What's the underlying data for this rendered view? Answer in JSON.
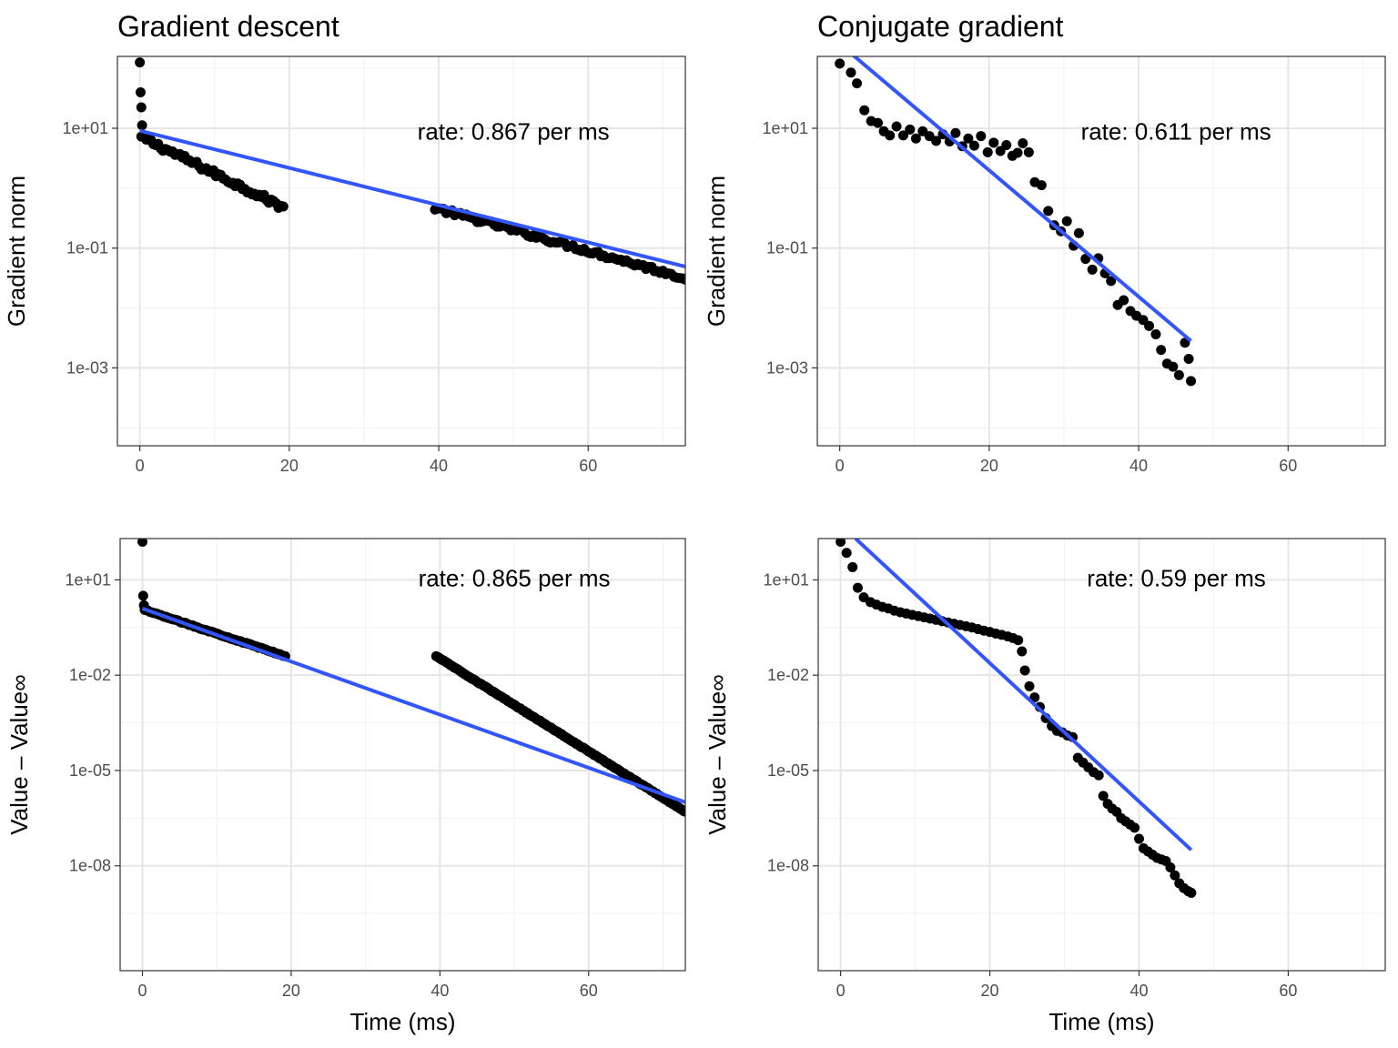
{
  "chart_data": [
    {
      "type": "scatter",
      "title": "Gradient descent",
      "ylabel": "Gradient norm",
      "xlabel": "",
      "xlim": [
        -3,
        73
      ],
      "ylim_log10": [
        -4.3,
        2.2
      ],
      "y_scale": "log10",
      "xticks": [
        0,
        20,
        40,
        60
      ],
      "xtick_labels": [
        "0",
        "20",
        "40",
        "60"
      ],
      "yticks_log10": [
        1,
        -1,
        -3
      ],
      "ytick_labels": [
        "1e+01",
        "1e-01",
        "1e-03"
      ],
      "annotation": {
        "text": "rate: 0.867 per ms",
        "x": 50,
        "y_log10": 0.95
      },
      "grid": true,
      "fit_line": {
        "color": "#3355FF",
        "x0": 0,
        "y0_log10": 0.96,
        "x1": 73,
        "y1_log10": -1.31
      },
      "segments": [
        {
          "x_start": 0.2,
          "x_end": 19.2,
          "n": 60,
          "y_start_log10": 0.85,
          "y_end_log10": -0.32,
          "noise": 0.05
        },
        {
          "x_start": 39.5,
          "x_end": 73,
          "n": 90,
          "y_start_log10": -0.33,
          "y_end_log10": -1.5,
          "noise": 0.04
        }
      ],
      "extra_points": [
        {
          "x": 0,
          "y_log10": 2.1
        },
        {
          "x": 0.1,
          "y_log10": 1.6
        },
        {
          "x": 0.2,
          "y_log10": 1.35
        },
        {
          "x": 0.3,
          "y_log10": 1.05
        }
      ]
    },
    {
      "type": "scatter",
      "title": "Conjugate gradient",
      "ylabel": "Gradient norm",
      "xlabel": "",
      "xlim": [
        -3,
        73
      ],
      "ylim_log10": [
        -4.3,
        2.2
      ],
      "y_scale": "log10",
      "xticks": [
        0,
        20,
        40,
        60
      ],
      "xtick_labels": [
        "0",
        "20",
        "40",
        "60"
      ],
      "yticks_log10": [
        1,
        -1,
        -3
      ],
      "ytick_labels": [
        "1e+01",
        "1e-01",
        "1e-03"
      ],
      "annotation": {
        "text": "rate: 0.611 per ms",
        "x": 45,
        "y_log10": 0.95
      },
      "grid": true,
      "fit_line": {
        "color": "#3355FF",
        "x0": 1.5,
        "y0_log10": 2.25,
        "x1": 47,
        "y1_log10": -2.55
      },
      "points": [
        [
          0,
          2.08
        ],
        [
          1.5,
          1.93
        ],
        [
          2.3,
          1.75
        ],
        [
          3.3,
          1.3
        ],
        [
          4.2,
          1.12
        ],
        [
          5.1,
          1.09
        ],
        [
          5.9,
          0.95
        ],
        [
          6.7,
          0.88
        ],
        [
          7.6,
          1.03
        ],
        [
          8.5,
          0.88
        ],
        [
          9.4,
          0.98
        ],
        [
          10.2,
          0.83
        ],
        [
          11.1,
          0.95
        ],
        [
          12,
          0.87
        ],
        [
          12.9,
          0.79
        ],
        [
          13.8,
          0.9
        ],
        [
          14.7,
          0.78
        ],
        [
          15.5,
          0.92
        ],
        [
          16.4,
          0.7
        ],
        [
          17.2,
          0.83
        ],
        [
          18,
          0.71
        ],
        [
          18.9,
          0.87
        ],
        [
          19.8,
          0.6
        ],
        [
          20.6,
          0.76
        ],
        [
          21.5,
          0.62
        ],
        [
          22.3,
          0.72
        ],
        [
          23.1,
          0.54
        ],
        [
          23.8,
          0.59
        ],
        [
          24.5,
          0.75
        ],
        [
          25.3,
          0.6
        ],
        [
          26.1,
          0.1
        ],
        [
          27,
          0.05
        ],
        [
          27.9,
          -0.38
        ],
        [
          28.7,
          -0.62
        ],
        [
          29.6,
          -0.72
        ],
        [
          30.4,
          -0.55
        ],
        [
          31.3,
          -0.96
        ],
        [
          32,
          -0.75
        ],
        [
          32.9,
          -1.18
        ],
        [
          33.8,
          -1.36
        ],
        [
          34.6,
          -1.17
        ],
        [
          35.5,
          -1.42
        ],
        [
          36.3,
          -1.55
        ],
        [
          37.2,
          -1.95
        ],
        [
          38,
          -1.87
        ],
        [
          38.9,
          -2.05
        ],
        [
          39.7,
          -2.13
        ],
        [
          40.6,
          -2.2
        ],
        [
          41.4,
          -2.3
        ],
        [
          42.3,
          -2.44
        ],
        [
          43,
          -2.7
        ],
        [
          43.8,
          -2.93
        ],
        [
          44.6,
          -2.98
        ],
        [
          45.4,
          -3.12
        ],
        [
          46.2,
          -2.58
        ],
        [
          46.7,
          -2.85
        ],
        [
          47,
          -3.22
        ]
      ]
    },
    {
      "type": "scatter",
      "title": "",
      "ylabel": "Value – Value∞",
      "xlabel": "Time (ms)",
      "xlim": [
        -3,
        73
      ],
      "ylim_log10": [
        -11.3,
        2.3
      ],
      "y_scale": "log10",
      "xticks": [
        0,
        20,
        40,
        60
      ],
      "xtick_labels": [
        "0",
        "20",
        "40",
        "60"
      ],
      "yticks_log10": [
        1,
        -2,
        -5,
        -8
      ],
      "ytick_labels": [
        "1e+01",
        "1e-02",
        "1e-05",
        "1e-08"
      ],
      "annotation": {
        "text": "rate: 0.865 per ms",
        "x": 50,
        "y_log10": 1.05
      },
      "grid": true,
      "fit_line": {
        "color": "#3355FF",
        "x0": 0,
        "y0_log10": 0.1,
        "x1": 73,
        "y1_log10": -6.0
      },
      "segments": [
        {
          "x_start": 0.3,
          "x_end": 19.2,
          "n": 80,
          "y_start_log10": 0.05,
          "y_end_log10": -1.4,
          "noise": 0.015
        },
        {
          "x_start": 39.5,
          "x_end": 73,
          "n": 140,
          "y_start_log10": -1.4,
          "y_end_log10": -6.3,
          "noise": 0.012
        }
      ],
      "extra_points": [
        {
          "x": 0,
          "y_log10": 2.2
        },
        {
          "x": 0.1,
          "y_log10": 0.5
        },
        {
          "x": 0.2,
          "y_log10": 0.2
        }
      ]
    },
    {
      "type": "scatter",
      "title": "",
      "ylabel": "Value – Value∞",
      "xlabel": "Time (ms)",
      "xlim": [
        -3,
        73
      ],
      "ylim_log10": [
        -11.3,
        2.3
      ],
      "y_scale": "log10",
      "xticks": [
        0,
        20,
        40,
        60
      ],
      "xtick_labels": [
        "0",
        "20",
        "40",
        "60"
      ],
      "yticks_log10": [
        1,
        -2,
        -5,
        -8
      ],
      "ytick_labels": [
        "1e+01",
        "1e-02",
        "1e-05",
        "1e-08"
      ],
      "annotation": {
        "text": "rate: 0.59 per ms",
        "x": 45,
        "y_log10": 1.05
      },
      "grid": true,
      "fit_line": {
        "color": "#3355FF",
        "x0": 2,
        "y0_log10": 2.3,
        "x1": 47,
        "y1_log10": -7.5
      },
      "points": [
        [
          0,
          2.2
        ],
        [
          0.8,
          1.85
        ],
        [
          1.6,
          1.4
        ],
        [
          2.3,
          0.75
        ],
        [
          3.1,
          0.45
        ],
        [
          4,
          0.3
        ],
        [
          4.8,
          0.22
        ],
        [
          5.6,
          0.15
        ],
        [
          6.4,
          0.1
        ],
        [
          7.2,
          0.03
        ],
        [
          8,
          -0.02
        ],
        [
          8.8,
          -0.06
        ],
        [
          9.6,
          -0.1
        ],
        [
          10.4,
          -0.14
        ],
        [
          11.2,
          -0.18
        ],
        [
          12,
          -0.22
        ],
        [
          12.8,
          -0.26
        ],
        [
          13.6,
          -0.3
        ],
        [
          14.4,
          -0.34
        ],
        [
          15.2,
          -0.38
        ],
        [
          16,
          -0.42
        ],
        [
          16.8,
          -0.46
        ],
        [
          17.6,
          -0.5
        ],
        [
          18.4,
          -0.55
        ],
        [
          19.2,
          -0.6
        ],
        [
          20,
          -0.64
        ],
        [
          20.8,
          -0.69
        ],
        [
          21.6,
          -0.73
        ],
        [
          22.4,
          -0.78
        ],
        [
          23.1,
          -0.83
        ],
        [
          23.8,
          -0.9
        ],
        [
          24.3,
          -1.25
        ],
        [
          24.7,
          -1.85
        ],
        [
          25.3,
          -2.35
        ],
        [
          26,
          -2.7
        ],
        [
          26.7,
          -3.0
        ],
        [
          27.5,
          -3.35
        ],
        [
          28.3,
          -3.6
        ],
        [
          29,
          -3.75
        ],
        [
          29.7,
          -3.8
        ],
        [
          30.4,
          -3.9
        ],
        [
          31.1,
          -3.95
        ],
        [
          31.8,
          -4.6
        ],
        [
          32.5,
          -4.75
        ],
        [
          33.2,
          -4.9
        ],
        [
          33.9,
          -5.05
        ],
        [
          34.6,
          -5.15
        ],
        [
          35.2,
          -5.8
        ],
        [
          35.8,
          -6.05
        ],
        [
          36.4,
          -6.2
        ],
        [
          37,
          -6.3
        ],
        [
          37.6,
          -6.5
        ],
        [
          38.2,
          -6.6
        ],
        [
          38.8,
          -6.7
        ],
        [
          39.4,
          -6.8
        ],
        [
          40,
          -7.15
        ],
        [
          40.6,
          -7.45
        ],
        [
          41.2,
          -7.55
        ],
        [
          41.8,
          -7.65
        ],
        [
          42.4,
          -7.75
        ],
        [
          43,
          -7.8
        ],
        [
          43.6,
          -7.85
        ],
        [
          44.2,
          -8.05
        ],
        [
          44.8,
          -8.3
        ],
        [
          45.4,
          -8.55
        ],
        [
          46,
          -8.7
        ],
        [
          46.6,
          -8.8
        ],
        [
          47,
          -8.85
        ]
      ]
    }
  ]
}
